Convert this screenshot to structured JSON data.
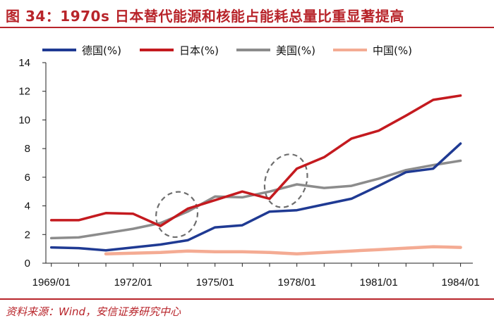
{
  "title": "图 34：1970s 日本替代能源和核能占能耗总量比重显著提高",
  "source": "资料来源：Wind，安信证券研究中心",
  "chart_data": {
    "type": "line",
    "x": [
      1969.0,
      1970.0,
      1971.0,
      1972.0,
      1973.0,
      1974.0,
      1975.0,
      1976.0,
      1977.0,
      1978.0,
      1979.0,
      1980.0,
      1981.0,
      1982.0,
      1983.0,
      1984.0
    ],
    "x_ticks": [
      1969,
      1972,
      1975,
      1978,
      1981,
      1984
    ],
    "x_tick_labels": [
      "1969/01",
      "1972/01",
      "1975/01",
      "1978/01",
      "1981/01",
      "1984/01"
    ],
    "ylim": [
      0,
      14
    ],
    "y_ticks": [
      0,
      2,
      4,
      6,
      8,
      10,
      12,
      14
    ],
    "xlabel": "",
    "ylabel": "",
    "legend_position": "top",
    "series": [
      {
        "name": "德国(%)",
        "color": "#1f3a93",
        "x": [
          1969,
          1970,
          1971,
          1972,
          1973,
          1974,
          1975,
          1976,
          1977,
          1978,
          1979,
          1980,
          1981,
          1982,
          1983,
          1984
        ],
        "values": [
          1.1,
          1.05,
          0.9,
          1.1,
          1.3,
          1.6,
          2.5,
          2.65,
          3.6,
          3.7,
          4.1,
          4.5,
          5.4,
          6.35,
          6.6,
          8.35
        ]
      },
      {
        "name": "日本(%)",
        "color": "#c41a1f",
        "x": [
          1969,
          1970,
          1971,
          1972,
          1973,
          1974,
          1975,
          1976,
          1977,
          1978,
          1979,
          1980,
          1981,
          1982,
          1983,
          1984
        ],
        "values": [
          3.0,
          3.0,
          3.5,
          3.45,
          2.6,
          3.8,
          4.4,
          5.0,
          4.5,
          6.6,
          7.4,
          8.7,
          9.25,
          10.3,
          11.4,
          11.7
        ]
      },
      {
        "name": "美国(%)",
        "color": "#8c8c8c",
        "x": [
          1969,
          1970,
          1971,
          1972,
          1973,
          1974,
          1975,
          1976,
          1977,
          1978,
          1979,
          1980,
          1981,
          1982,
          1983,
          1984
        ],
        "values": [
          1.75,
          1.8,
          2.1,
          2.4,
          2.8,
          3.6,
          4.65,
          4.6,
          5.0,
          5.5,
          5.25,
          5.4,
          5.9,
          6.5,
          6.85,
          7.15
        ]
      },
      {
        "name": "中国(%)",
        "color": "#f4ab93",
        "x": [
          1971,
          1972,
          1973,
          1974,
          1975,
          1976,
          1977,
          1978,
          1979,
          1980,
          1981,
          1982,
          1983,
          1984
        ],
        "values": [
          0.65,
          0.7,
          0.75,
          0.85,
          0.8,
          0.8,
          0.75,
          0.65,
          0.75,
          0.85,
          0.95,
          1.05,
          1.15,
          1.1
        ]
      }
    ],
    "annotations": [
      {
        "shape": "dashed-ellipse",
        "x_center": 1973.6,
        "y_center": 3.4,
        "x_radius": 0.75,
        "y_radius": 1.6
      },
      {
        "shape": "dashed-ellipse",
        "x_center": 1977.6,
        "y_center": 5.75,
        "x_radius": 0.75,
        "y_radius": 1.9
      }
    ]
  }
}
